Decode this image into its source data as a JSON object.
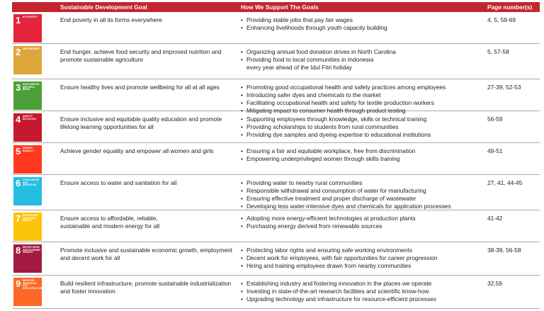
{
  "header": {
    "goal": "Sustainable Development Goal",
    "how": "How We Support The Goals",
    "pages": "Page number(s)"
  },
  "rows": [
    {
      "number": 1,
      "icon_label": "NO POVERTY",
      "color": "#e5243b",
      "goal": "End poverty in all its forms everywhere",
      "actions": [
        "Providing stable jobs that pay fair wages",
        "Enhancing livelihoods through youth capacity building"
      ],
      "pages": "4, 5, 59-69"
    },
    {
      "number": 2,
      "icon_label": "ZERO HUNGER",
      "color": "#dda63a",
      "goal": "End hunger, achieve food security and improved nutrition and\npromote sustainable agriculture",
      "actions": [
        "Organizing annual food donation drives in North Carolina",
        "Providing food to local communities in Indonesia\nevery year ahead of the Idul Fitri holiday"
      ],
      "pages": "5, 57-58"
    },
    {
      "number": 3,
      "icon_label": "GOOD HEALTH AND WELL-BEING",
      "color": "#4c9f38",
      "goal": "Ensure healthy lives and promote wellbeing for all at all ages",
      "actions": [
        "Promoting good occupational health and safety  practices among employees",
        "Introducing safer dyes and chemicals to the market",
        "Facilitating occupational health and safety for textile production workers",
        "Mitigating impact to consumer health through product testing"
      ],
      "pages": "27-39, 52-53"
    },
    {
      "number": 4,
      "icon_label": "QUALITY EDUCATION",
      "color": "#c5192d",
      "goal": "Ensure inclusive and equitable quality education and promote\nlifelong learning opportunities for all",
      "actions": [
        "Supporting employees through knowledge, skills or technical training",
        "Providing scholarships to students from rural communities",
        "Providing dye samples and dyeing expertise to educational institutions"
      ],
      "pages": "56-59"
    },
    {
      "number": 5,
      "icon_label": "GENDER EQUALITY",
      "color": "#ff3a21",
      "goal": "Achieve gender equality and empower all women and girls",
      "actions": [
        "Ensuring a fair and equitable workplace, free from discrimination",
        "Empowering underprivileged women through skills training"
      ],
      "pages": "49-51"
    },
    {
      "number": 6,
      "icon_label": "CLEAN WATER AND SANITATION",
      "color": "#26bde2",
      "goal": "Ensure access to water and sanitation for all",
      "actions": [
        "Providing water to nearby rural communities",
        "Responsible withdrawal and consumption of water for manufacturing",
        "Ensuring effective treatment and proper discharge of wastewater",
        "Developing less water-intensive dyes and chemicals for application processes"
      ],
      "pages": "27, 41, 44-45"
    },
    {
      "number": 7,
      "icon_label": "AFFORDABLE AND CLEAN ENERGY",
      "color": "#fcc30b",
      "goal": "Ensure access to affordable, reliable,\nsustainable and modern energy for all",
      "actions": [
        "Adopting more energy-efficient technologies at production plants",
        "Purchasing energy derived from renewable sources"
      ],
      "pages": "41-42"
    },
    {
      "number": 8,
      "icon_label": "DECENT WORK AND ECONOMIC GROWTH",
      "color": "#a21942",
      "goal": "Promote inclusive and sustainable economic growth, employment\nand decent work for all",
      "actions": [
        "Protecting labor rights and ensuring safe working environments",
        "Decent work for employees, with fair opportunities for career progression",
        "Hiring and training employees drawn from nearby communities"
      ],
      "pages": "38-39, 56-58"
    },
    {
      "number": 9,
      "icon_label": "INDUSTRY, INNOVATION AND INFRASTRUCTURE",
      "color": "#fd6925",
      "goal": "Build resilient infrastructure, promote sustainable industrialization\nand foster innovation",
      "actions": [
        "Establishing industry and fostering innovation in the places we operate",
        "Investing in state-of-the-art research facilities and scientific know-how",
        "Upgrading technology and infrastructure for resource-efficient processes"
      ],
      "pages": "32,59"
    }
  ]
}
